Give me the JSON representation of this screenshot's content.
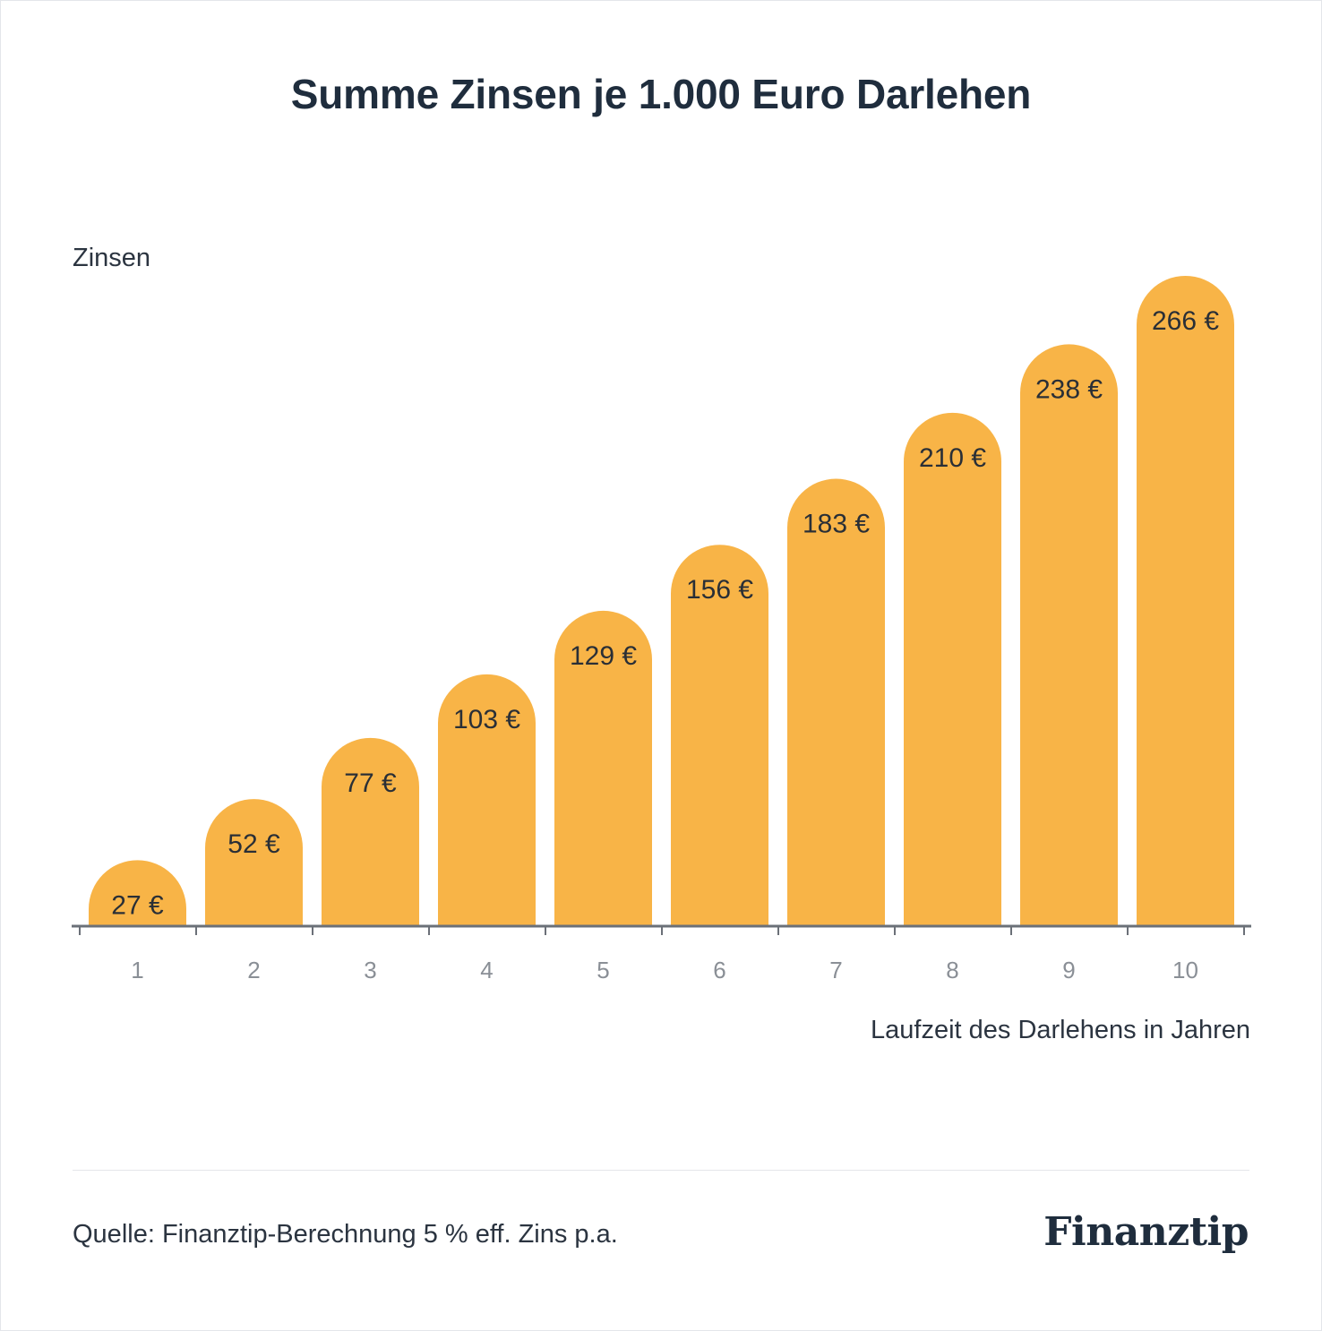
{
  "header": {
    "title": "Summe Zinsen je 1.000 Euro Darlehen"
  },
  "chart_data": {
    "type": "bar",
    "title": "Summe Zinsen je 1.000 Euro Darlehen",
    "xlabel": "Laufzeit des Darlehens in Jahren",
    "ylabel": "Zinsen",
    "categories": [
      "1",
      "2",
      "3",
      "4",
      "5",
      "6",
      "7",
      "8",
      "9",
      "10"
    ],
    "values": [
      27,
      52,
      77,
      103,
      129,
      156,
      183,
      210,
      238,
      266
    ],
    "value_labels": [
      "27 €",
      "52 €",
      "77 €",
      "103 €",
      "129 €",
      "156 €",
      "183 €",
      "210 €",
      "238 €",
      "266 €"
    ],
    "ylim": [
      0,
      266
    ],
    "grid": false,
    "bar_color": "#F8B447"
  },
  "footer": {
    "source": "Quelle: Finanztip-Berechnung 5 % eff. Zins p.a.",
    "logo": "Finanztip"
  },
  "colors": {
    "bar": "#F8B447",
    "text": "#1f2d3d",
    "axis": "#6b7078",
    "tick_label": "#8a8f96"
  }
}
